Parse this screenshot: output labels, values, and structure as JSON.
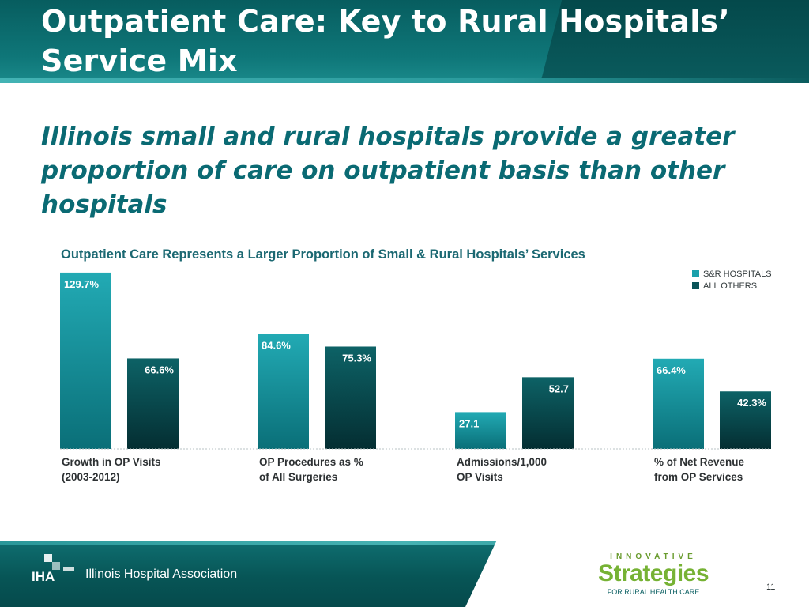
{
  "slide": {
    "title": "Outpatient Care: Key to Rural Hospitals’ Service Mix",
    "subtitle": "Illinois small and rural hospitals provide a greater proportion of care on outpatient basis than other hospitals",
    "page_number": "11"
  },
  "footer": {
    "iha_mark": "IHA",
    "iha_name": "Illinois Hospital Association",
    "is_top": "INNOVATIVE",
    "is_main": "Strategies",
    "is_tagline": "FOR RURAL HEALTH CARE"
  },
  "colors": {
    "sr": "#1aa0ab",
    "others": "#0a5458",
    "header": "#0f7779",
    "brand_green": "#76b234"
  },
  "chart_data": {
    "type": "bar",
    "title": "Outpatient Care Represents a Larger Proportion of Small & Rural Hospitals’ Services",
    "categories": [
      [
        "Growth in OP Visits",
        "(2003-2012)"
      ],
      [
        "OP Procedures as %",
        "of All Surgeries"
      ],
      [
        "Admissions/1,000",
        "OP Visits"
      ],
      [
        "% of Net Revenue",
        "from OP Services"
      ]
    ],
    "series": [
      {
        "name": "S&R HOSPITALS",
        "values": [
          129.7,
          84.6,
          27.1,
          66.4
        ],
        "labels": [
          "129.7%",
          "84.6%",
          "27.1",
          "66.4%"
        ]
      },
      {
        "name": "ALL OTHERS",
        "values": [
          66.6,
          75.3,
          52.7,
          42.3
        ],
        "labels": [
          "66.6%",
          "75.3%",
          "52.7",
          "42.3%"
        ]
      }
    ],
    "legend_position": "top-right",
    "grid": false,
    "baseline": "dotted"
  }
}
